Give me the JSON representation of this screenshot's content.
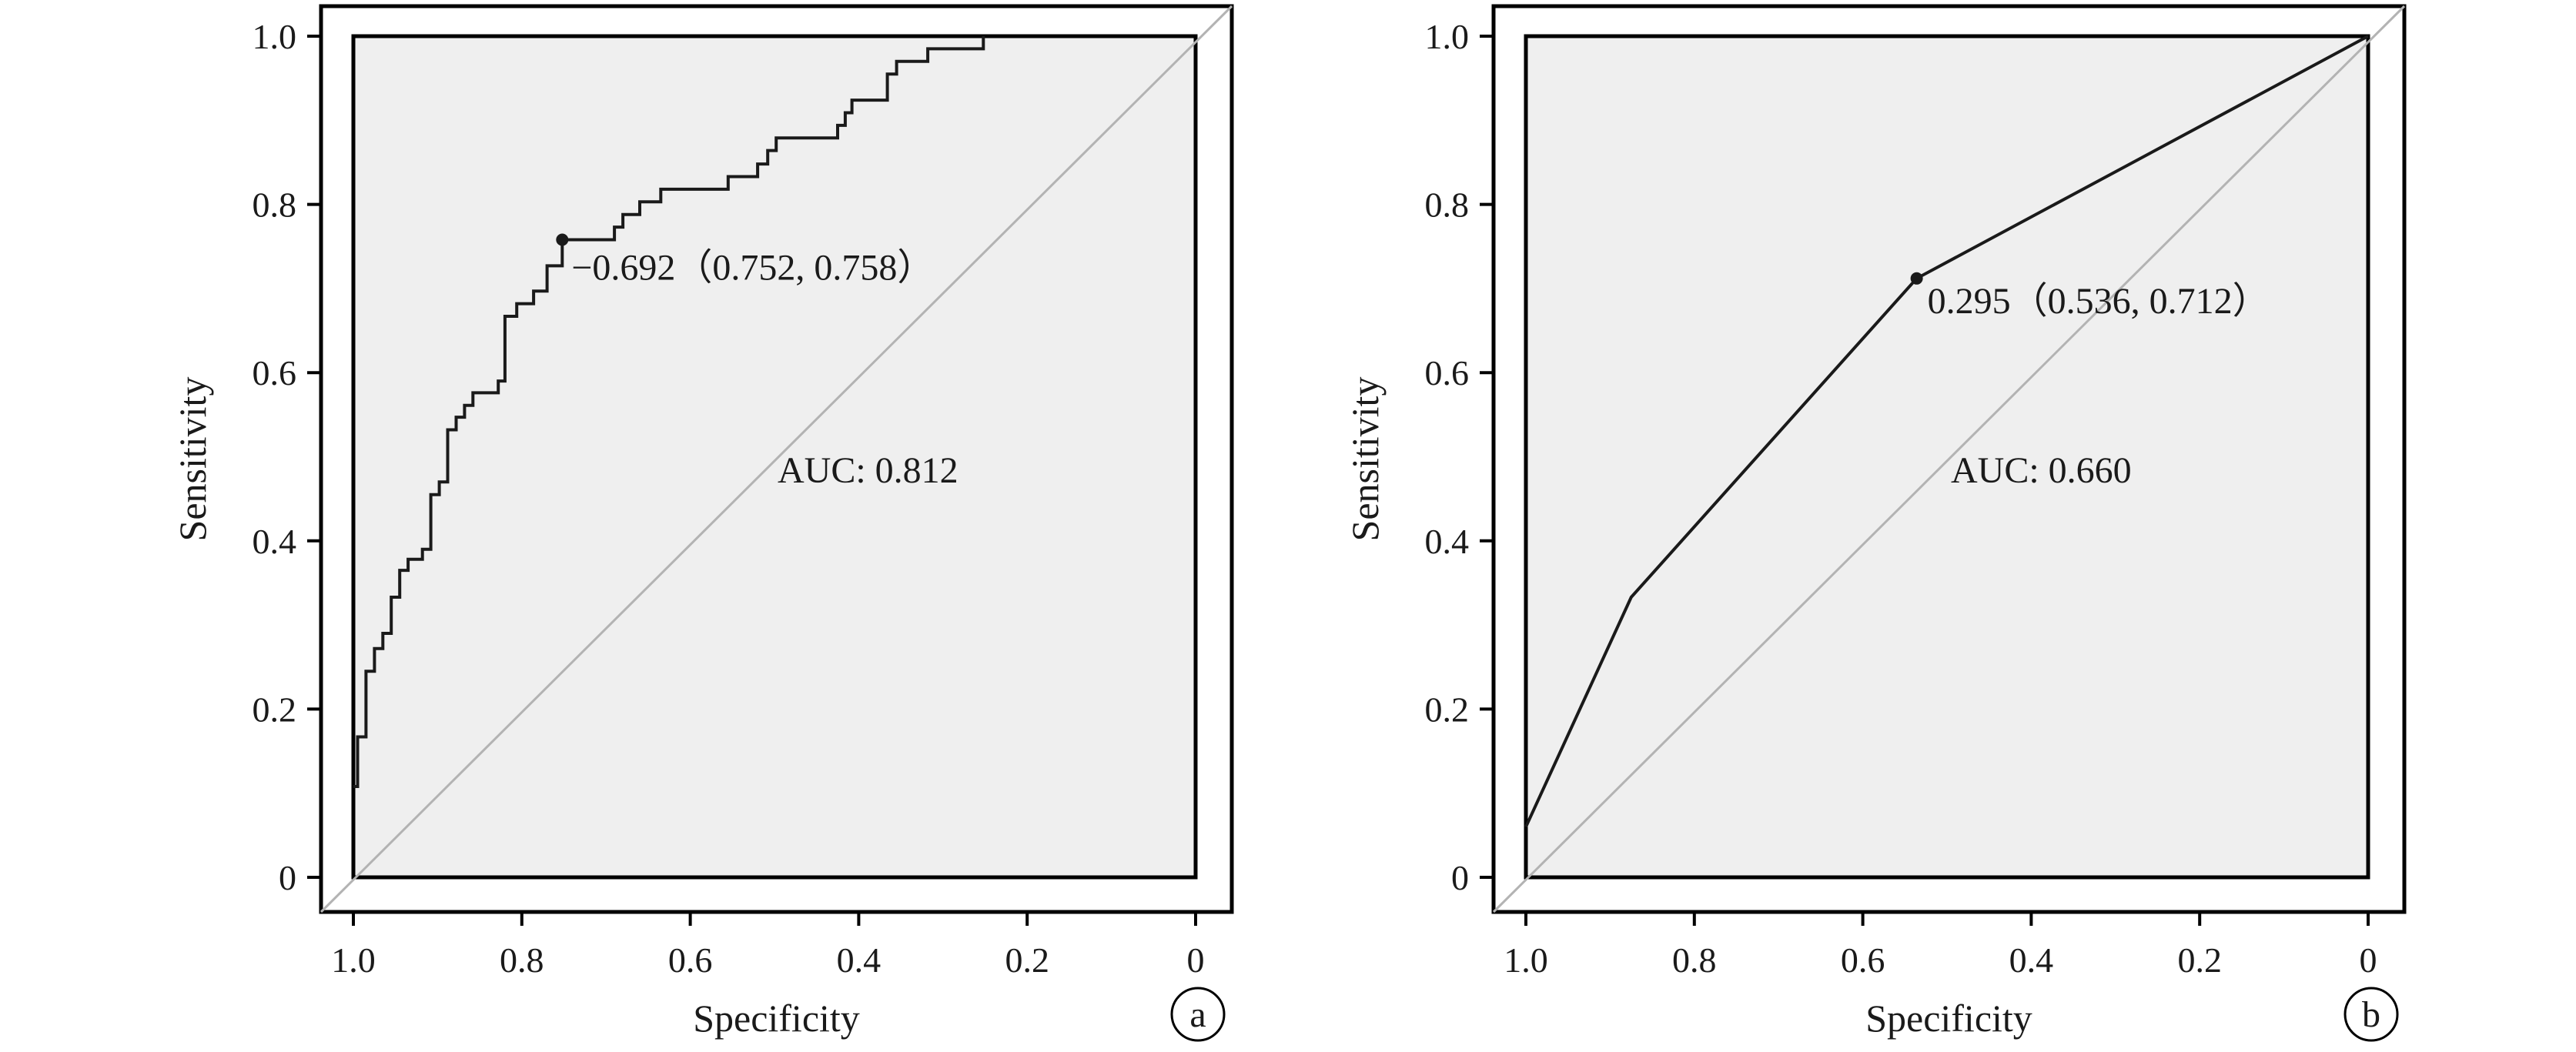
{
  "chart_data": [
    {
      "type": "line",
      "panel_label": "a",
      "xlabel": "Specificity",
      "ylabel": "Sensitivity",
      "x_reversed": true,
      "xlim": [
        1.0,
        0
      ],
      "ylim": [
        0,
        1.0
      ],
      "x_ticks": [
        "1.0",
        "0.8",
        "0.6",
        "0.4",
        "0.2",
        "0"
      ],
      "y_ticks": [
        "0",
        "0.2",
        "0.4",
        "0.6",
        "0.8",
        "1.0"
      ],
      "auc_text": "AUC: 0.812",
      "threshold_label": "−0.692（0.752, 0.758）",
      "threshold_point": {
        "specificity": 0.752,
        "sensitivity": 0.758
      },
      "reference_line": "diagonal",
      "roc": {
        "specificity": [
          1.0,
          0.995,
          0.995,
          0.985,
          0.985,
          0.975,
          0.975,
          0.965,
          0.965,
          0.955,
          0.955,
          0.945,
          0.945,
          0.935,
          0.935,
          0.918,
          0.918,
          0.908,
          0.908,
          0.898,
          0.898,
          0.888,
          0.888,
          0.878,
          0.878,
          0.868,
          0.868,
          0.858,
          0.858,
          0.828,
          0.828,
          0.82,
          0.82,
          0.806,
          0.806,
          0.786,
          0.786,
          0.77,
          0.77,
          0.752,
          0.752,
          0.69,
          0.69,
          0.68,
          0.68,
          0.66,
          0.66,
          0.635,
          0.635,
          0.555,
          0.555,
          0.52,
          0.52,
          0.508,
          0.508,
          0.498,
          0.498,
          0.425,
          0.425,
          0.416,
          0.416,
          0.408,
          0.408,
          0.366,
          0.366,
          0.355,
          0.355,
          0.318,
          0.318,
          0.252,
          0.252
        ],
        "sensitivity": [
          0.108,
          0.108,
          0.167,
          0.167,
          0.245,
          0.245,
          0.272,
          0.272,
          0.29,
          0.29,
          0.333,
          0.333,
          0.365,
          0.365,
          0.378,
          0.378,
          0.39,
          0.39,
          0.455,
          0.455,
          0.47,
          0.47,
          0.532,
          0.532,
          0.547,
          0.547,
          0.561,
          0.561,
          0.576,
          0.576,
          0.59,
          0.59,
          0.667,
          0.667,
          0.682,
          0.682,
          0.697,
          0.697,
          0.727,
          0.727,
          0.758,
          0.758,
          0.773,
          0.773,
          0.788,
          0.788,
          0.803,
          0.803,
          0.818,
          0.818,
          0.833,
          0.833,
          0.848,
          0.848,
          0.864,
          0.864,
          0.879,
          0.879,
          0.894,
          0.894,
          0.909,
          0.909,
          0.924,
          0.924,
          0.955,
          0.955,
          0.97,
          0.97,
          0.985,
          0.985,
          1.0
        ]
      }
    },
    {
      "type": "line",
      "panel_label": "b",
      "xlabel": "Specificity",
      "ylabel": "Sensitivity",
      "x_reversed": true,
      "xlim": [
        1.0,
        0
      ],
      "ylim": [
        0,
        1.0
      ],
      "x_ticks": [
        "1.0",
        "0.8",
        "0.6",
        "0.4",
        "0.2",
        "0"
      ],
      "y_ticks": [
        "0",
        "0.2",
        "0.4",
        "0.6",
        "0.8",
        "1.0"
      ],
      "auc_text": "AUC: 0.660",
      "threshold_label": "0.295（0.536, 0.712）",
      "threshold_point": {
        "specificity": 0.536,
        "sensitivity": 0.712
      },
      "reference_line": "diagonal",
      "roc": {
        "specificity": [
          1.0,
          0.875,
          0.536,
          0.0
        ],
        "sensitivity": [
          0.06,
          0.333,
          0.712,
          1.0
        ]
      }
    }
  ],
  "colors": {
    "plot_bg": "#efefef",
    "frame": "#000000",
    "roc_line": "#1a1a1a",
    "diagonal": "#b3b3b3",
    "text": "#1a1a1a"
  }
}
